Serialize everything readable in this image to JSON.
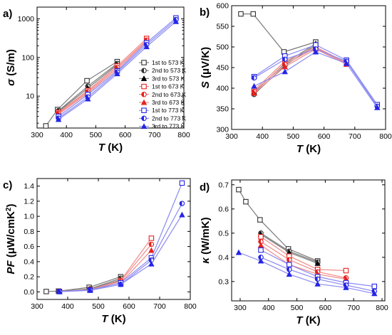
{
  "figure": {
    "legend": [
      {
        "label": "1st to 573 K",
        "color": "#333333",
        "marker": "square-open"
      },
      {
        "label": "2nd to 573 K",
        "color": "#333333",
        "marker": "circle-half"
      },
      {
        "label": "3rd to 573 K",
        "color": "#000000",
        "marker": "triangle"
      },
      {
        "label": "1st to 673 K",
        "color": "#e8211e",
        "marker": "square-open"
      },
      {
        "label": "2nd to 673 K",
        "color": "#e8211e",
        "marker": "circle-half"
      },
      {
        "label": "3rd to 673 K",
        "color": "#e8211e",
        "marker": "triangle"
      },
      {
        "label": "1st to 773 K",
        "color": "#2424e6",
        "marker": "square-open"
      },
      {
        "label": "2nd to 773 K",
        "color": "#2424e6",
        "marker": "circle-half"
      },
      {
        "label": "3rd to 773 K",
        "color": "#2424e6",
        "marker": "triangle"
      }
    ]
  },
  "chart_data": [
    {
      "panel": "a)",
      "type": "line",
      "ylabel": "σ (S/m)",
      "ylabel_main": "σ",
      "ylabel_unit": " (S/m)",
      "xlabel": "T (K)",
      "xlabel_main": "T",
      "xlabel_unit": " (K)",
      "xlim": [
        300,
        800
      ],
      "ylim": [
        1.5,
        2000
      ],
      "yscale": "log",
      "xticks": [
        300,
        400,
        500,
        600,
        700,
        800
      ],
      "yticks": [
        10,
        100,
        1000
      ],
      "legend_position": "right",
      "series": [
        {
          "name": "1st to 573 K",
          "x": [
            330,
            370,
            470,
            573
          ],
          "y": [
            1.7,
            4.5,
            25,
            78
          ]
        },
        {
          "name": "2nd to 573 K",
          "x": [
            373,
            473,
            573
          ],
          "y": [
            4.2,
            18,
            70
          ]
        },
        {
          "name": "3rd to 573 K",
          "x": [
            373,
            473,
            573
          ],
          "y": [
            4.0,
            16,
            65
          ]
        },
        {
          "name": "1st to 673 K",
          "x": [
            373,
            473,
            573,
            673
          ],
          "y": [
            3.8,
            14,
            60,
            310
          ]
        },
        {
          "name": "2nd to 673 K",
          "x": [
            373,
            473,
            573,
            673
          ],
          "y": [
            3.6,
            13,
            55,
            280
          ]
        },
        {
          "name": "3rd to 673 K",
          "x": [
            373,
            473,
            573,
            673
          ],
          "y": [
            3.4,
            12,
            50,
            260
          ]
        },
        {
          "name": "1st to 773 K",
          "x": [
            373,
            473,
            573,
            673,
            773
          ],
          "y": [
            3.0,
            11,
            45,
            240,
            1050
          ]
        },
        {
          "name": "2nd to 773 K",
          "x": [
            373,
            473,
            573,
            673,
            773
          ],
          "y": [
            2.7,
            9.5,
            42,
            215,
            950
          ]
        },
        {
          "name": "3rd to 773 K",
          "x": [
            373,
            473,
            573,
            673,
            773
          ],
          "y": [
            2.5,
            8.5,
            38,
            190,
            850
          ]
        }
      ]
    },
    {
      "panel": "b)",
      "type": "line",
      "ylabel": "S (μV/K)",
      "ylabel_main": "S",
      "ylabel_unit": " (μV/K)",
      "xlabel": "T (K)",
      "xlabel_main": "T",
      "xlabel_unit": " (K)",
      "xlim": [
        300,
        800
      ],
      "ylim": [
        300,
        600
      ],
      "xticks": [
        300,
        400,
        500,
        600,
        700,
        800
      ],
      "yticks": [
        300,
        350,
        400,
        450,
        500,
        550,
        600
      ],
      "series": [
        {
          "name": "1st to 573 K",
          "x": [
            330,
            370,
            470,
            573
          ],
          "y": [
            580,
            580,
            488,
            512
          ]
        },
        {
          "name": "2nd to 573 K",
          "x": [
            373,
            473,
            573
          ],
          "y": [
            385,
            455,
            505
          ]
        },
        {
          "name": "3rd to 573 K",
          "x": [
            373,
            473,
            573
          ],
          "y": [
            390,
            460,
            508
          ]
        },
        {
          "name": "1st to 673 K",
          "x": [
            373,
            473,
            573,
            673
          ],
          "y": [
            395,
            465,
            500,
            462
          ]
        },
        {
          "name": "2nd to 673 K",
          "x": [
            373,
            473,
            573,
            673
          ],
          "y": [
            392,
            458,
            498,
            460
          ]
        },
        {
          "name": "3rd to 673 K",
          "x": [
            373,
            473,
            573,
            673
          ],
          "y": [
            388,
            452,
            495,
            458
          ]
        },
        {
          "name": "1st to 773 K",
          "x": [
            373,
            473,
            573,
            673,
            773
          ],
          "y": [
            428,
            478,
            505,
            468,
            360
          ]
        },
        {
          "name": "2nd to 773 K",
          "x": [
            373,
            473,
            573,
            673,
            773
          ],
          "y": [
            425,
            470,
            495,
            465,
            356
          ]
        },
        {
          "name": "3rd to 773 K",
          "x": [
            373,
            473,
            573,
            673,
            773
          ],
          "y": [
            405,
            440,
            488,
            460,
            353
          ]
        }
      ]
    },
    {
      "panel": "c)",
      "type": "line",
      "ylabel": "PF (μW/cmK²)",
      "ylabel_main": "PF",
      "ylabel_unit": " (μW/cmK",
      "ylabel_sup": "2",
      "ylabel_close": ")",
      "xlabel": "T (K)",
      "xlabel_main": "T",
      "xlabel_unit": " (K)",
      "xlim": [
        300,
        800
      ],
      "ylim": [
        -0.1,
        1.5
      ],
      "xticks": [
        300,
        400,
        500,
        600,
        700,
        800
      ],
      "yticks": [
        0.0,
        0.2,
        0.4,
        0.6,
        0.8,
        1.0,
        1.2,
        1.4
      ],
      "ytick_labels": [
        "0.0",
        "0.2",
        "0.4",
        "0.6",
        "0.8",
        "1.0",
        "1.2",
        "1.4"
      ],
      "series": [
        {
          "name": "1st to 573 K",
          "x": [
            330,
            370,
            470,
            573
          ],
          "y": [
            0.005,
            0.01,
            0.06,
            0.2
          ]
        },
        {
          "name": "2nd to 573 K",
          "x": [
            373,
            473,
            573
          ],
          "y": [
            0.006,
            0.04,
            0.18
          ]
        },
        {
          "name": "3rd to 573 K",
          "x": [
            373,
            473,
            573
          ],
          "y": [
            0.006,
            0.035,
            0.16
          ]
        },
        {
          "name": "1st to 673 K",
          "x": [
            373,
            473,
            573,
            673
          ],
          "y": [
            0.006,
            0.03,
            0.15,
            0.71
          ]
        },
        {
          "name": "2nd to 673 K",
          "x": [
            373,
            473,
            573,
            673
          ],
          "y": [
            0.005,
            0.028,
            0.14,
            0.63
          ]
        },
        {
          "name": "3rd to 673 K",
          "x": [
            373,
            473,
            573,
            673
          ],
          "y": [
            0.005,
            0.025,
            0.12,
            0.55
          ]
        },
        {
          "name": "1st to 773 K",
          "x": [
            373,
            473,
            573,
            673,
            773
          ],
          "y": [
            0.004,
            0.025,
            0.12,
            0.45,
            1.44
          ]
        },
        {
          "name": "2nd to 773 K",
          "x": [
            373,
            473,
            573,
            673,
            773
          ],
          "y": [
            0.004,
            0.022,
            0.1,
            0.42,
            1.17
          ]
        },
        {
          "name": "3rd to 773 K",
          "x": [
            373,
            473,
            573,
            673,
            773
          ],
          "y": [
            0.003,
            0.02,
            0.1,
            0.37,
            1.02
          ]
        }
      ]
    },
    {
      "panel": "d)",
      "type": "line",
      "ylabel": "κ (W/mK)",
      "ylabel_main": "κ",
      "ylabel_unit": " (W/mK)",
      "xlabel": "T (K)",
      "xlabel_main": "T",
      "xlabel_unit": " (K)",
      "xlim": [
        270,
        810
      ],
      "ylim": [
        0.22,
        0.72
      ],
      "xticks": [
        300,
        400,
        500,
        600,
        700,
        800
      ],
      "yticks": [
        0.3,
        0.4,
        0.5,
        0.6,
        0.7
      ],
      "ytick_labels": [
        "0.3",
        "0.4",
        "0.5",
        "0.6",
        "0.7"
      ],
      "series": [
        {
          "name": "1st to 573 K",
          "x": [
            295,
            320,
            370,
            470,
            573
          ],
          "y": [
            0.68,
            0.63,
            0.555,
            0.435,
            0.385
          ]
        },
        {
          "name": "2nd to 573 K",
          "x": [
            373,
            473,
            573
          ],
          "y": [
            0.5,
            0.425,
            0.38
          ]
        },
        {
          "name": "3rd to 573 K",
          "x": [
            373,
            473,
            573
          ],
          "y": [
            0.495,
            0.42,
            0.375
          ]
        },
        {
          "name": "1st to 673 K",
          "x": [
            373,
            473,
            573,
            673
          ],
          "y": [
            0.485,
            0.405,
            0.35,
            0.345
          ]
        },
        {
          "name": "2nd to 673 K",
          "x": [
            373,
            473,
            573,
            673
          ],
          "y": [
            0.465,
            0.39,
            0.34,
            0.315
          ]
        },
        {
          "name": "3rd to 673 K",
          "x": [
            373,
            473,
            573,
            673
          ],
          "y": [
            0.45,
            0.37,
            0.33,
            0.31
          ]
        },
        {
          "name": "1st to 773 K",
          "x": [
            373,
            473,
            573,
            673,
            773
          ],
          "y": [
            0.43,
            0.37,
            0.32,
            0.295,
            0.28
          ]
        },
        {
          "name": "2nd to 773 K",
          "x": [
            373,
            473,
            573,
            673,
            773
          ],
          "y": [
            0.4,
            0.35,
            0.31,
            0.285,
            0.26
          ]
        },
        {
          "name": "3rd to 773 K",
          "x": [
            295,
            373,
            473,
            573,
            673,
            773
          ],
          "y": [
            0.42,
            0.385,
            0.33,
            0.29,
            0.275,
            0.25
          ]
        }
      ]
    }
  ]
}
